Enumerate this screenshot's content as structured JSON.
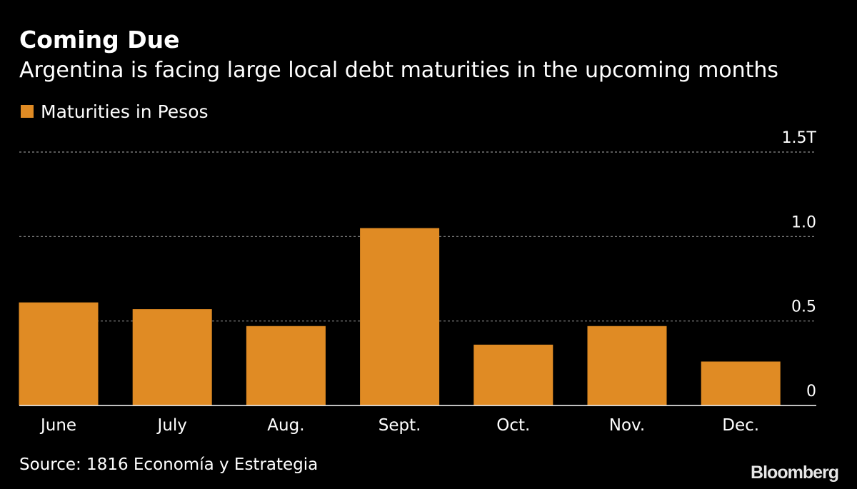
{
  "colors": {
    "background": "#000000",
    "bar": "#e08b24",
    "text": "#ffffff",
    "grid": "#8c8c8c",
    "baseline": "#ffffff"
  },
  "legend": {
    "label": "Maturities in Pesos"
  },
  "source": "Source: 1816 Economía y Estrategia",
  "logo": "Bloomberg",
  "chart_data": {
    "type": "bar",
    "title": "Coming Due",
    "subtitle": "Argentina is facing large local debt maturities in the upcoming months",
    "categories": [
      "June",
      "July",
      "Aug.",
      "Sept.",
      "Oct.",
      "Nov.",
      "Dec."
    ],
    "series": [
      {
        "name": "Maturities in Pesos",
        "values": [
          0.61,
          0.57,
          0.47,
          1.05,
          0.36,
          0.47,
          0.26
        ]
      }
    ],
    "xlabel": "",
    "ylabel": "",
    "ylim": [
      0,
      1.5
    ],
    "yticks": [
      0,
      0.5,
      1.0,
      1.5
    ],
    "ytick_labels": [
      "0",
      "0.5",
      "1.0",
      "1.5T"
    ],
    "grid": true,
    "legend_position": "top-left"
  }
}
